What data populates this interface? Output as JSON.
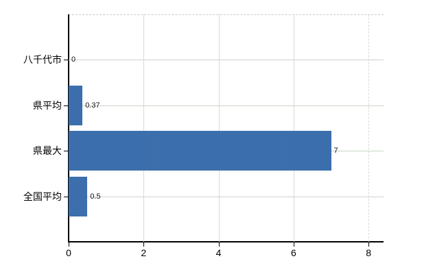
{
  "chart_data": {
    "type": "bar",
    "orientation": "horizontal",
    "title": "",
    "xlabel": "",
    "ylabel": "",
    "categories": [
      "八千代市",
      "県平均",
      "県最大",
      "全国平均"
    ],
    "values": [
      0,
      0.37,
      7,
      0.5
    ],
    "value_labels": [
      "0",
      "0.37",
      "7",
      "0.5"
    ],
    "xticks": [
      0,
      2,
      4,
      6,
      8
    ],
    "xtick_labels": [
      "0",
      "2",
      "4",
      "6",
      "8"
    ],
    "xlim": [
      0,
      8.4
    ],
    "grid": true,
    "legend": null,
    "bar_color": "#3b6fae",
    "gridline_color_horizontal": "#ccd5c8",
    "gridline_color_vertical": "#d9d9d9",
    "axis_color": "#000000",
    "background_color": "#ffffff"
  }
}
